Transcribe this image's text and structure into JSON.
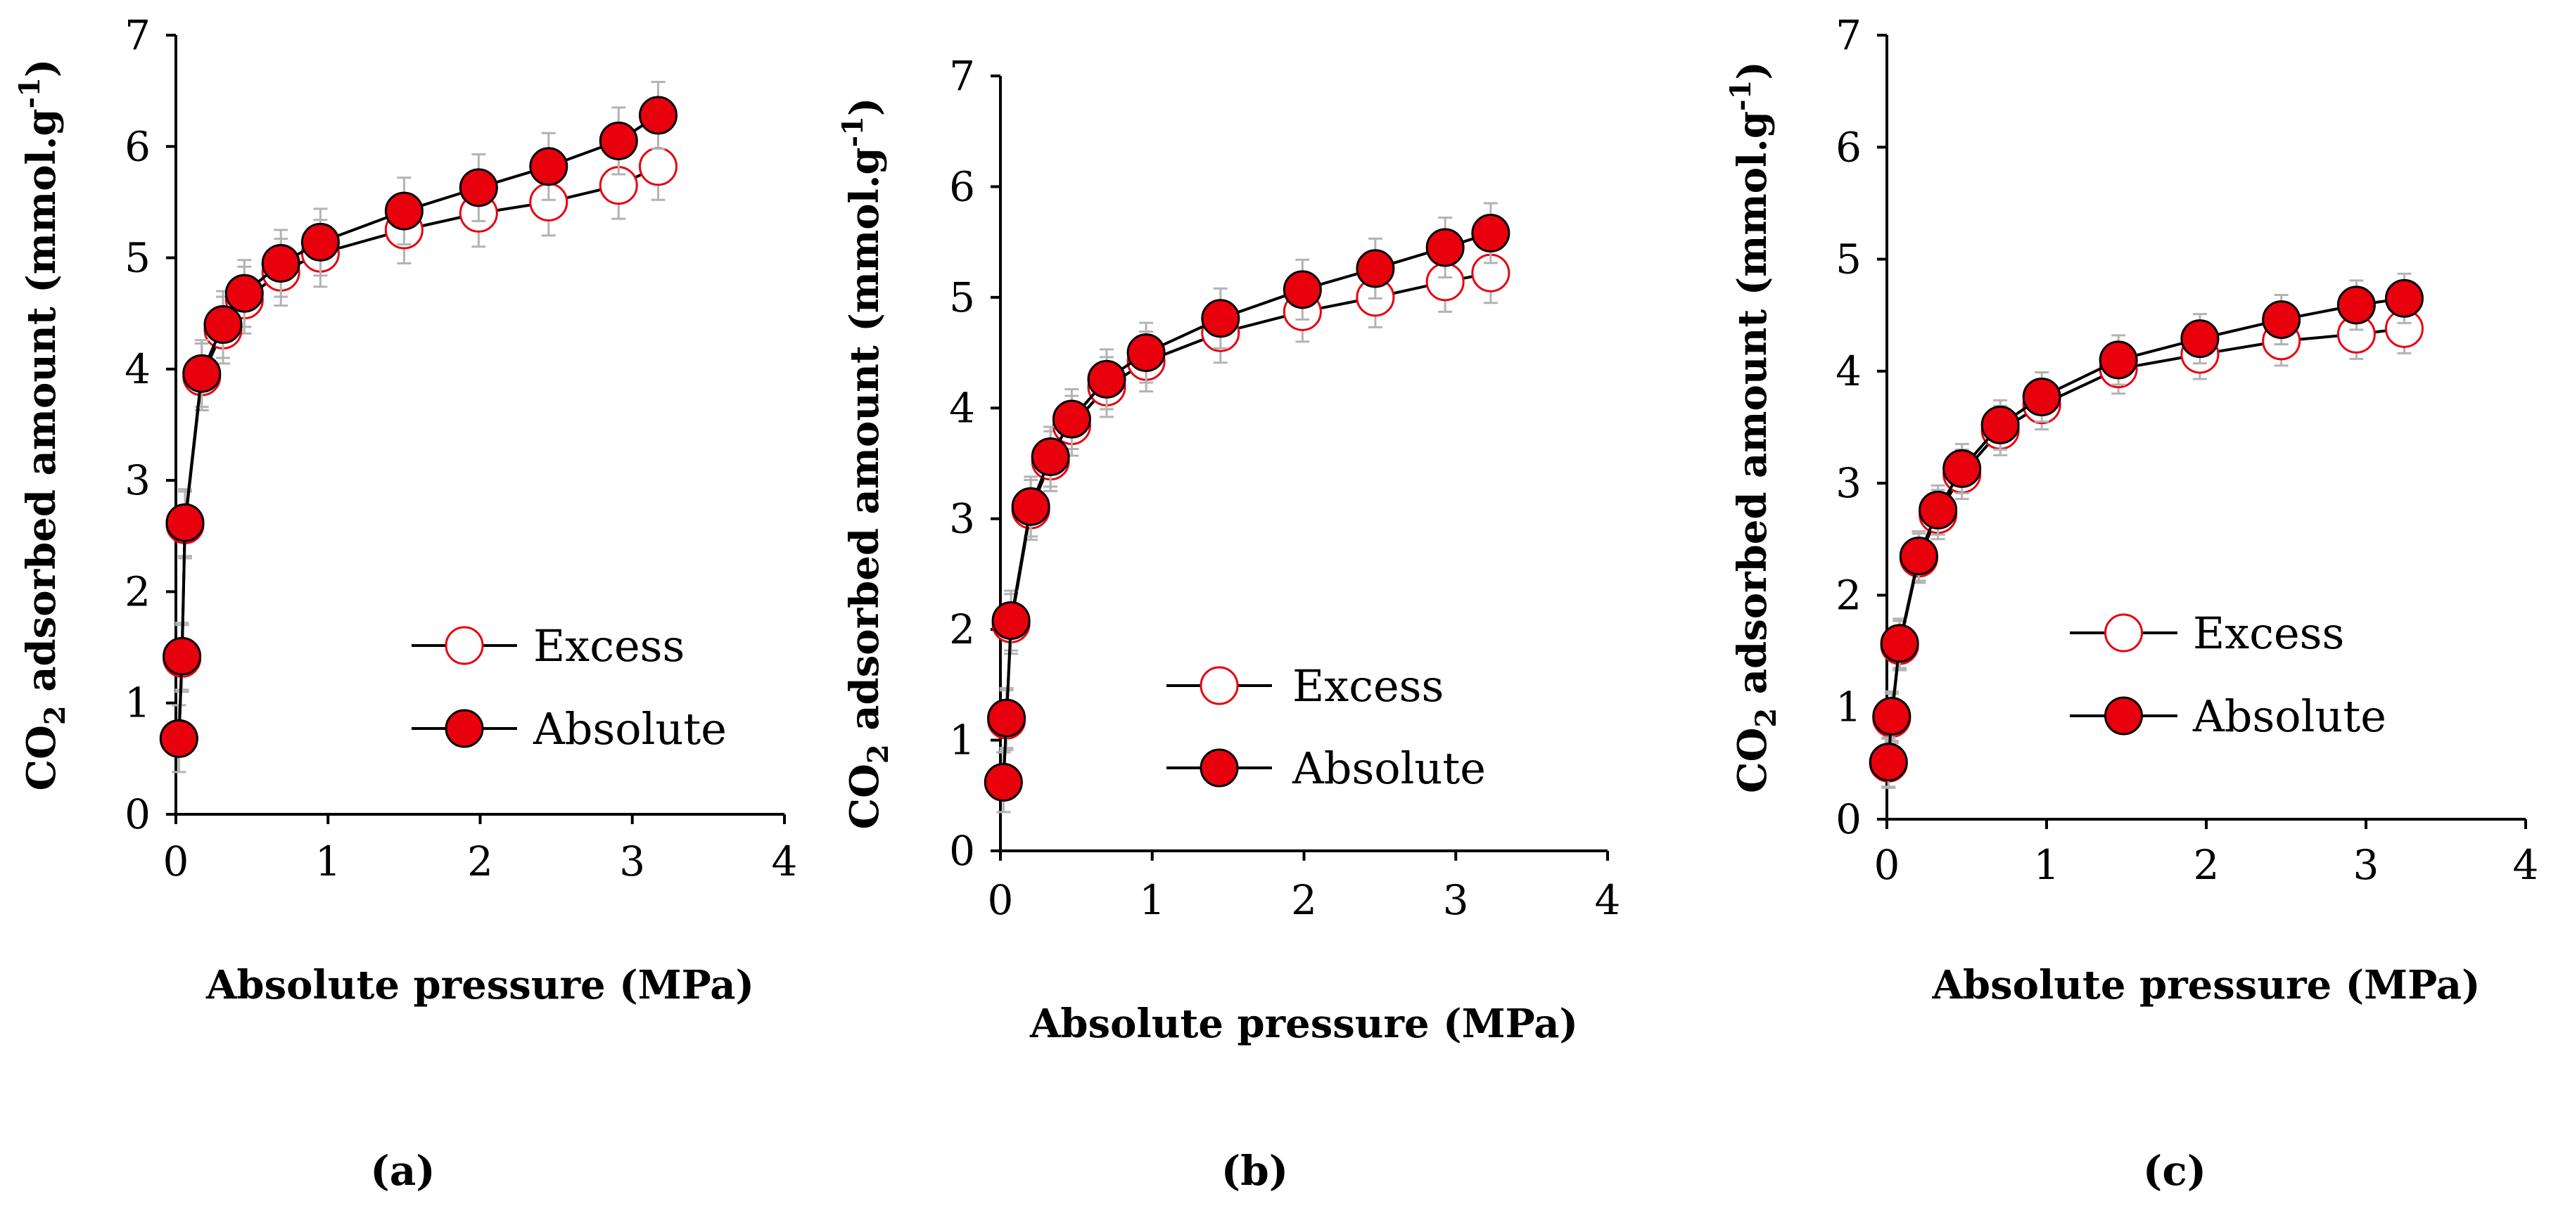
{
  "colors": {
    "marker_fill": "#e8000d",
    "marker_stroke": "#000000",
    "excess_stroke": "#e8000d",
    "error_bar": "#b3b3b3",
    "line": "#000000"
  },
  "chart_data": [
    {
      "type": "scatter",
      "panel_label": "(a)",
      "xlabel": "Absolute pressure (MPa)",
      "ylabel_parts": [
        "CO",
        "2",
        " adsorbed amount (mmol.g",
        "-1",
        ")"
      ],
      "xlim": [
        0,
        4
      ],
      "ylim": [
        0,
        7
      ],
      "xticks": [
        "0",
        "1",
        "2",
        "3",
        "4"
      ],
      "yticks": [
        "0",
        "1",
        "2",
        "3",
        "4",
        "5",
        "6",
        "7"
      ],
      "error_y": 0.3,
      "error_x": 0.1,
      "legend_position": "center-right",
      "series": [
        {
          "name": "Excess",
          "marker": "open-circle",
          "x": [
            0.02,
            0.04,
            0.06,
            0.17,
            0.31,
            0.45,
            0.69,
            0.95,
            1.5,
            1.99,
            2.45,
            2.91,
            3.17
          ],
          "y": [
            0.68,
            1.4,
            2.6,
            3.93,
            4.35,
            4.62,
            4.87,
            5.04,
            5.25,
            5.4,
            5.5,
            5.65,
            5.82
          ]
        },
        {
          "name": "Absolute",
          "marker": "filled-circle",
          "x": [
            0.02,
            0.04,
            0.06,
            0.17,
            0.31,
            0.45,
            0.69,
            0.95,
            1.5,
            1.99,
            2.45,
            2.91,
            3.17
          ],
          "y": [
            0.68,
            1.42,
            2.62,
            3.96,
            4.4,
            4.68,
            4.95,
            5.14,
            5.42,
            5.63,
            5.82,
            6.05,
            6.28
          ]
        }
      ]
    },
    {
      "type": "scatter",
      "panel_label": "(b)",
      "xlabel": "Absolute pressure (MPa)",
      "ylabel_parts": [
        "CO",
        "2",
        " adsorbed amount (mmol.g",
        "-1",
        ")"
      ],
      "xlim": [
        0,
        4
      ],
      "ylim": [
        0,
        7
      ],
      "xticks": [
        "0",
        "1",
        "2",
        "3",
        "4"
      ],
      "yticks": [
        "0",
        "1",
        "2",
        "3",
        "4",
        "5",
        "6",
        "7"
      ],
      "error_y": 0.27,
      "error_x": 0.1,
      "legend_position": "center-right",
      "series": [
        {
          "name": "Excess",
          "marker": "open-circle",
          "x": [
            0.02,
            0.04,
            0.07,
            0.2,
            0.33,
            0.47,
            0.7,
            0.96,
            1.45,
            1.99,
            2.47,
            2.93,
            3.23
          ],
          "y": [
            0.62,
            1.18,
            2.05,
            3.08,
            3.52,
            3.84,
            4.19,
            4.42,
            4.68,
            4.87,
            5.0,
            5.14,
            5.22
          ]
        },
        {
          "name": "Absolute",
          "marker": "filled-circle",
          "x": [
            0.02,
            0.04,
            0.07,
            0.2,
            0.33,
            0.47,
            0.7,
            0.96,
            1.45,
            1.99,
            2.47,
            2.93,
            3.23
          ],
          "y": [
            0.62,
            1.2,
            2.08,
            3.11,
            3.56,
            3.9,
            4.26,
            4.5,
            4.81,
            5.07,
            5.26,
            5.45,
            5.58
          ]
        }
      ]
    },
    {
      "type": "scatter",
      "panel_label": "(c)",
      "xlabel": "Absolute pressure (MPa)",
      "ylabel_parts": [
        "CO",
        "2",
        " adsorbed amount (mmol.g",
        "-1",
        ")"
      ],
      "xlim": [
        0,
        4
      ],
      "ylim": [
        0,
        7
      ],
      "xticks": [
        "0",
        "1",
        "2",
        "3",
        "4"
      ],
      "yticks": [
        "0",
        "1",
        "2",
        "3",
        "4",
        "5",
        "6",
        "7"
      ],
      "error_y": 0.22,
      "error_x": 0.1,
      "legend_position": "center-right",
      "series": [
        {
          "name": "Excess",
          "marker": "open-circle",
          "x": [
            0.01,
            0.03,
            0.08,
            0.2,
            0.32,
            0.47,
            0.71,
            0.97,
            1.45,
            1.96,
            2.47,
            2.94,
            3.24
          ],
          "y": [
            0.5,
            0.9,
            1.55,
            2.33,
            2.72,
            3.08,
            3.47,
            3.7,
            4.02,
            4.15,
            4.27,
            4.33,
            4.38
          ]
        },
        {
          "name": "Absolute",
          "marker": "filled-circle",
          "x": [
            0.01,
            0.03,
            0.08,
            0.2,
            0.32,
            0.47,
            0.71,
            0.97,
            1.45,
            1.96,
            2.47,
            2.94,
            3.24
          ],
          "y": [
            0.51,
            0.92,
            1.57,
            2.35,
            2.76,
            3.13,
            3.52,
            3.77,
            4.1,
            4.29,
            4.46,
            4.59,
            4.65
          ]
        }
      ]
    }
  ]
}
